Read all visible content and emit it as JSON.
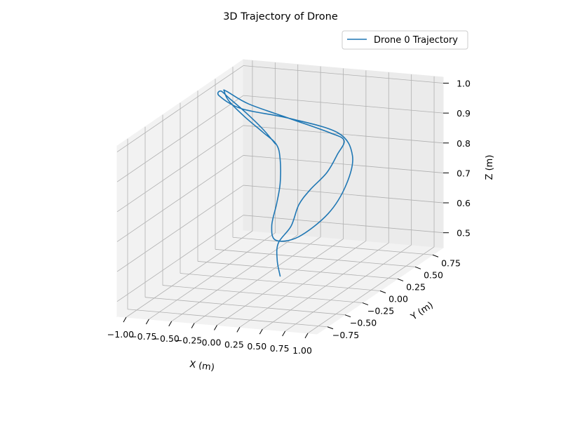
{
  "chart_data": {
    "type": "line3d",
    "title": "3D Trajectory of Drone",
    "xlabel": "X (m)",
    "ylabel": "Y (m)",
    "zlabel": "Z (m)",
    "xlim": [
      -1.1,
      1.1
    ],
    "ylim": [
      -0.9,
      0.9
    ],
    "zlim": [
      0.45,
      1.02
    ],
    "xticks": [
      -1.0,
      -0.75,
      -0.5,
      -0.25,
      0.0,
      0.25,
      0.5,
      0.75,
      1.0
    ],
    "xtick_labels": [
      "−1.00",
      "−0.75",
      "−0.50",
      "−0.25",
      "0.00",
      "0.25",
      "0.50",
      "0.75",
      "1.00"
    ],
    "yticks": [
      -0.75,
      -0.5,
      -0.25,
      0.0,
      0.25,
      0.5,
      0.75
    ],
    "ytick_labels": [
      "−0.75",
      "−0.50",
      "−0.25",
      "0.00",
      "0.25",
      "0.50",
      "0.75"
    ],
    "zticks": [
      0.5,
      0.6,
      0.7,
      0.8,
      0.9,
      1.0
    ],
    "ztick_labels": [
      "0.5",
      "0.6",
      "0.7",
      "0.8",
      "0.9",
      "1.0"
    ],
    "grid": true,
    "legend_position": "top-right",
    "series": [
      {
        "name": "Drone 0 Trajectory",
        "color": "#1f77b4",
        "points": [
          [
            0.0,
            0.0,
            0.47
          ],
          [
            -0.04,
            0.01,
            0.52
          ],
          [
            -0.02,
            0.0,
            0.58
          ],
          [
            0.12,
            0.0,
            0.64
          ],
          [
            0.36,
            -0.2,
            0.75
          ],
          [
            0.64,
            -0.4,
            0.84
          ],
          [
            0.9,
            -0.5,
            0.92
          ],
          [
            1.0,
            -0.48,
            0.98
          ],
          [
            0.95,
            -0.32,
            1.0
          ],
          [
            0.7,
            -0.2,
            1.0
          ],
          [
            0.1,
            0.0,
            1.0
          ],
          [
            -0.5,
            0.2,
            1.0
          ],
          [
            -0.9,
            0.4,
            1.0
          ],
          [
            -1.0,
            0.5,
            0.98
          ],
          [
            -0.95,
            0.5,
            0.95
          ],
          [
            -0.7,
            0.4,
            0.92
          ],
          [
            -0.38,
            0.25,
            0.9
          ],
          [
            -0.08,
            0.05,
            0.9
          ],
          [
            0.0,
            0.0,
            0.86
          ],
          [
            0.0,
            0.0,
            0.78
          ],
          [
            0.0,
            -0.05,
            0.72
          ],
          [
            0.1,
            -0.25,
            0.68
          ],
          [
            0.3,
            -0.45,
            0.67
          ],
          [
            0.6,
            -0.52,
            0.7
          ],
          [
            0.9,
            -0.48,
            0.78
          ],
          [
            1.0,
            -0.35,
            0.86
          ],
          [
            0.95,
            -0.2,
            0.93
          ],
          [
            0.7,
            -0.08,
            0.98
          ],
          [
            0.1,
            0.0,
            1.0
          ],
          [
            -0.5,
            0.1,
            1.0
          ],
          [
            -0.9,
            0.3,
            1.0
          ],
          [
            -1.0,
            0.45,
            0.99
          ],
          [
            -0.95,
            0.5,
            0.96
          ],
          [
            -0.7,
            0.42,
            0.93
          ],
          [
            -0.38,
            0.25,
            0.91
          ],
          [
            -0.1,
            0.06,
            0.9
          ]
        ]
      }
    ]
  }
}
